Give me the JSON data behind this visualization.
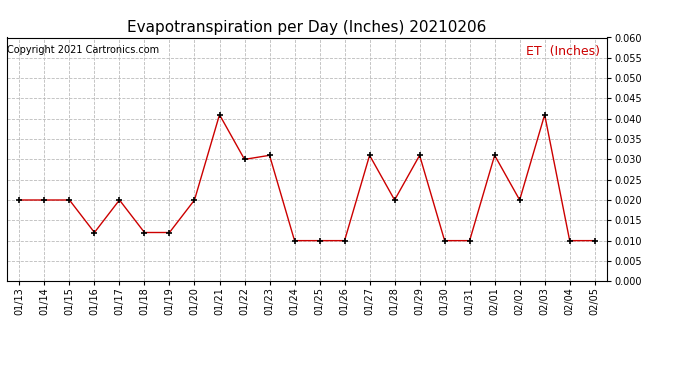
{
  "title": "Evapotranspiration per Day (Inches) 20210206",
  "copyright": "Copyright 2021 Cartronics.com",
  "legend_label": "ET  (Inches)",
  "dates": [
    "01/13",
    "01/14",
    "01/15",
    "01/16",
    "01/17",
    "01/18",
    "01/19",
    "01/20",
    "01/21",
    "01/22",
    "01/23",
    "01/24",
    "01/25",
    "01/26",
    "01/27",
    "01/28",
    "01/29",
    "01/30",
    "01/31",
    "02/01",
    "02/02",
    "02/03",
    "02/04",
    "02/05"
  ],
  "et_values": [
    0.02,
    0.02,
    0.02,
    0.012,
    0.02,
    0.012,
    0.012,
    0.02,
    0.041,
    0.03,
    0.031,
    0.01,
    0.01,
    0.01,
    0.031,
    0.02,
    0.031,
    0.01,
    0.01,
    0.031,
    0.02,
    0.041,
    0.01,
    0.01
  ],
  "line_color": "#cc0000",
  "marker_color": "#000000",
  "ylim_min": 0.0,
  "ylim_max": 0.06,
  "ytick_step": 0.005,
  "background_color": "#ffffff",
  "grid_color": "#bbbbbb",
  "title_fontsize": 11,
  "copyright_fontsize": 7,
  "legend_color": "#cc0000",
  "legend_fontsize": 9,
  "tick_fontsize": 7
}
